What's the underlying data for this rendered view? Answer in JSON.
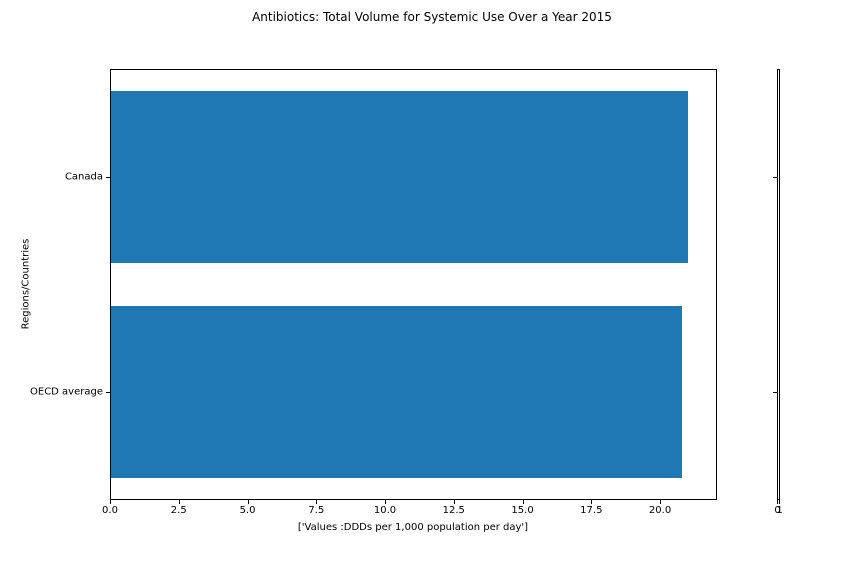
{
  "chart_data": {
    "type": "bar",
    "orientation": "horizontal",
    "title": "Antibiotics: Total Volume for Systemic Use Over a Year 2015",
    "categories": [
      "Canada",
      "OECD average"
    ],
    "values": [
      21.0,
      20.8
    ],
    "xlabel": "['Values :DDDs per 1,000 population per day']",
    "ylabel": "Regions/Countries",
    "xlim": [
      0,
      22.07
    ],
    "x_ticks": [
      "0.0",
      "2.5",
      "5.0",
      "7.5",
      "10.0",
      "12.5",
      "15.0",
      "17.5",
      "20.0"
    ],
    "bar_color": "#1f77b4",
    "bar_height_fraction": 0.8,
    "grid": false,
    "legend_position": "none",
    "secondary_axis": {
      "x_ticks": [
        "0",
        "1"
      ],
      "xlim": [
        0,
        1
      ]
    }
  }
}
